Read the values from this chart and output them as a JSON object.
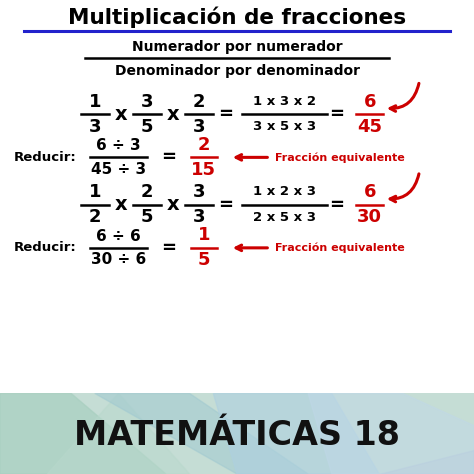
{
  "title": "Multiplicación de fracciones",
  "subtitle_line1": "Numerador por numerador",
  "subtitle_line2": "Denominador por denominador",
  "footer": "MATEMÁTICAS 18",
  "bg_color": "#ffffff",
  "title_color": "#000000",
  "title_underline_color": "#2222cc",
  "red_color": "#cc0000",
  "black_color": "#000000",
  "footer_text_color": "#111111",
  "footer_bg": "#c8dfd8"
}
